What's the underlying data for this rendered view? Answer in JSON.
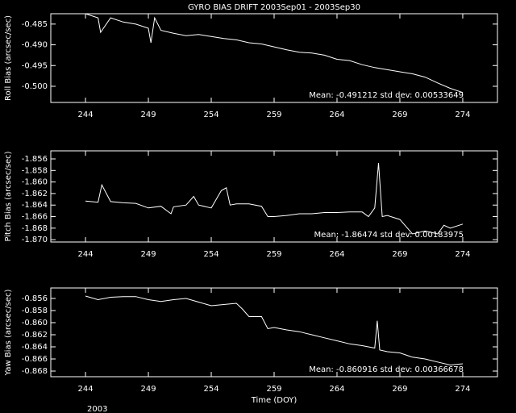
{
  "chart_data": [
    {
      "type": "line",
      "title": "GYRO BIAS DRIFT 2003Sep01 - 2003Sep30",
      "ylabel": "Roll Bias (arcsec/sec)",
      "annotation": "Mean: -0.491212 std dev: 0.00533649",
      "color": "#ffffff",
      "xlim": [
        241.24,
        276.76
      ],
      "xticks": [
        244,
        249,
        254,
        259,
        264,
        269,
        274
      ],
      "ylim": [
        -0.5039,
        -0.4825
      ],
      "yticks": [
        -0.485,
        {
          "value": -0.49,
          "label": "-0.490"
        },
        -0.495,
        {
          "value": -0.5,
          "label": "-0.500"
        }
      ],
      "x": [
        244,
        245,
        245.2,
        246,
        247,
        248,
        249,
        249.2,
        249.5,
        250,
        251,
        252,
        253,
        254,
        255,
        256,
        257,
        258,
        259,
        260,
        261,
        262,
        263,
        264,
        265,
        266,
        267,
        268,
        269,
        270,
        271,
        272,
        273,
        274
      ],
      "values": [
        -0.4825,
        -0.4835,
        -0.487,
        -0.4835,
        -0.4845,
        -0.485,
        -0.486,
        -0.4895,
        -0.4835,
        -0.4865,
        -0.4872,
        -0.4878,
        -0.4875,
        -0.488,
        -0.4885,
        -0.4888,
        -0.4895,
        -0.4898,
        -0.4905,
        -0.4912,
        -0.4918,
        -0.492,
        -0.4925,
        -0.4935,
        -0.4938,
        -0.4948,
        -0.4955,
        -0.496,
        -0.4965,
        -0.497,
        -0.4978,
        -0.4992,
        -0.5005,
        -0.5015
      ]
    },
    {
      "type": "line",
      "ylabel": "Pitch Bias (arcsec/sec)",
      "annotation": "Mean: -1.86474 std dev: 0.00183975",
      "color": "#ffffff",
      "xlim": [
        241.24,
        276.76
      ],
      "xticks": [
        244,
        249,
        254,
        259,
        264,
        269,
        274
      ],
      "ylim": [
        -1.8704,
        -1.8546
      ],
      "yticks": [
        -1.856,
        -1.858,
        {
          "value": -1.86,
          "label": "-1.860"
        },
        -1.862,
        -1.864,
        -1.866,
        -1.868,
        {
          "value": -1.87,
          "label": "-1.870"
        }
      ],
      "x": [
        244,
        245,
        245.3,
        246,
        247,
        248,
        249,
        250,
        250.8,
        251,
        252,
        252.6,
        253,
        254,
        254.8,
        255.2,
        255.5,
        256,
        257,
        258,
        258.5,
        259,
        260,
        261,
        262,
        263,
        264,
        265,
        266,
        266.5,
        267,
        267.3,
        267.6,
        268,
        269,
        270,
        271,
        272,
        272.5,
        273,
        274
      ],
      "values": [
        -1.8633,
        -1.8635,
        -1.8605,
        -1.8634,
        -1.8636,
        -1.8637,
        -1.8645,
        -1.8642,
        -1.8655,
        -1.8643,
        -1.864,
        -1.8625,
        -1.864,
        -1.8645,
        -1.8615,
        -1.861,
        -1.864,
        -1.8638,
        -1.8638,
        -1.8642,
        -1.866,
        -1.866,
        -1.8658,
        -1.8655,
        -1.8655,
        -1.8653,
        -1.8653,
        -1.8652,
        -1.8652,
        -1.866,
        -1.8645,
        -1.8567,
        -1.866,
        -1.8658,
        -1.8665,
        -1.869,
        -1.8685,
        -1.869,
        -1.8675,
        -1.868,
        -1.8673
      ]
    },
    {
      "type": "line",
      "ylabel": "Yaw Bias (arcsec/sec)",
      "xlabel": "Time (DOY)",
      "year_label": "2003",
      "annotation": "Mean: -0.860916 std dev: 0.00366678",
      "color": "#ffffff",
      "xlim": [
        241.24,
        276.76
      ],
      "xticks": [
        244,
        249,
        254,
        259,
        264,
        269,
        274
      ],
      "ylim": [
        -0.86893,
        -0.85427
      ],
      "yticks": [
        -0.856,
        -0.858,
        {
          "value": -0.86,
          "label": "-0.860"
        },
        -0.862,
        -0.864,
        -0.866,
        -0.868
      ],
      "x": [
        244,
        245,
        246,
        247,
        248,
        249,
        250,
        251,
        252,
        253,
        254,
        255,
        256,
        256.5,
        257,
        258,
        258.5,
        259,
        260,
        261,
        262,
        263,
        264,
        265,
        266,
        267,
        267.2,
        267.4,
        268,
        269,
        270,
        271,
        272,
        273,
        274
      ],
      "values": [
        -0.8556,
        -0.8562,
        -0.8558,
        -0.8557,
        -0.8557,
        -0.8562,
        -0.8565,
        -0.8562,
        -0.856,
        -0.8566,
        -0.8572,
        -0.857,
        -0.8568,
        -0.8578,
        -0.859,
        -0.859,
        -0.861,
        -0.8608,
        -0.8612,
        -0.8615,
        -0.862,
        -0.8625,
        -0.863,
        -0.8635,
        -0.8638,
        -0.8642,
        -0.8597,
        -0.8645,
        -0.8648,
        -0.865,
        -0.8657,
        -0.866,
        -0.8665,
        -0.867,
        -0.8668
      ]
    }
  ]
}
